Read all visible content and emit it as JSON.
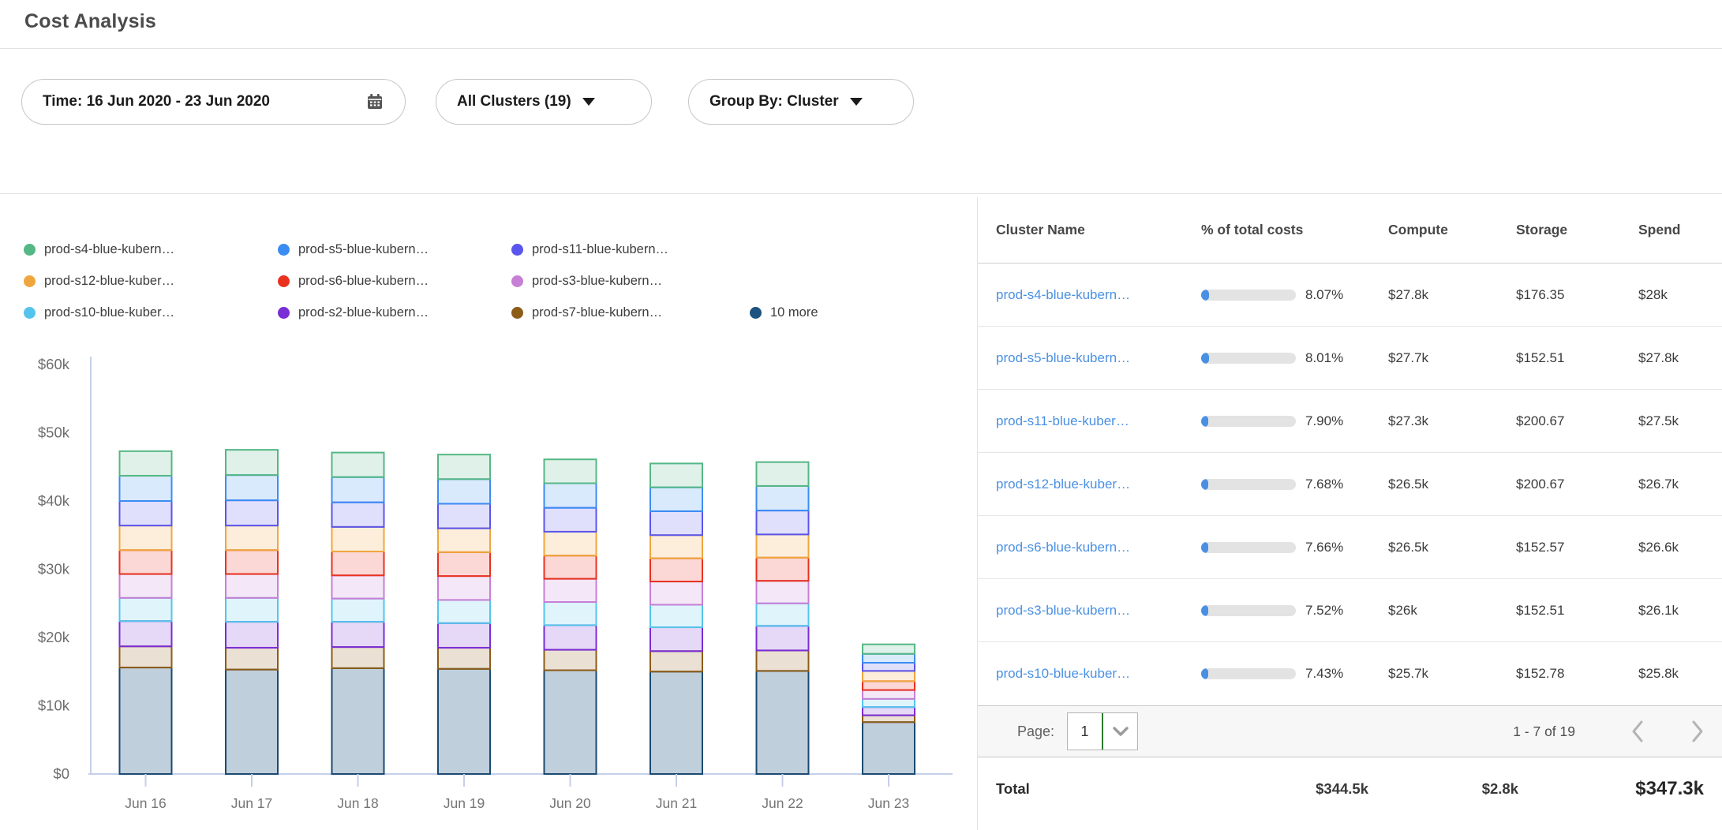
{
  "header": {
    "title": "Cost Analysis"
  },
  "filters": {
    "time": {
      "label": "Time: 16 Jun 2020 - 23 Jun 2020"
    },
    "clusters": {
      "label": "All Clusters (19)"
    },
    "group_by": {
      "label": "Group By: Cluster"
    }
  },
  "legend": {
    "rows": [
      [
        0,
        1,
        2
      ],
      [
        3,
        4,
        5
      ],
      [
        6,
        7,
        8,
        9
      ]
    ],
    "items": [
      {
        "label": "prod-s4-blue-kubern…",
        "color": "#55b785"
      },
      {
        "label": "prod-s5-blue-kubern…",
        "color": "#3c8df2"
      },
      {
        "label": "prod-s11-blue-kubern…",
        "color": "#5a55ee"
      },
      {
        "label": "prod-s12-blue-kuber…",
        "color": "#f0a63e"
      },
      {
        "label": "prod-s6-blue-kubern…",
        "color": "#e8321f"
      },
      {
        "label": "prod-s3-blue-kubern…",
        "color": "#c77fd6"
      },
      {
        "label": "prod-s10-blue-kuber…",
        "color": "#55c4ec"
      },
      {
        "label": "prod-s2-blue-kubern…",
        "color": "#7a2ed6"
      },
      {
        "label": "prod-s7-blue-kubern…",
        "color": "#8d5c17"
      },
      {
        "label": "10 more",
        "color": "#1d5380"
      }
    ]
  },
  "chart_data": {
    "type": "bar",
    "stacked": true,
    "categories": [
      "Jun 16",
      "Jun 17",
      "Jun 18",
      "Jun 19",
      "Jun 20",
      "Jun 21",
      "Jun 22",
      "Jun 23"
    ],
    "unit": "thousand USD",
    "ylim": [
      0,
      60
    ],
    "ytick_labels": [
      "$60k",
      "$50k",
      "$40k",
      "$30k",
      "$20k",
      "$10k",
      "$0"
    ],
    "ytick_values": [
      60,
      50,
      40,
      30,
      20,
      10,
      0
    ],
    "legend_position": "top",
    "grid": false,
    "note": "series listed bottom-to-top of stack; values estimated from bar heights, $k",
    "series": [
      {
        "name": "10 more",
        "color": "#1d5380",
        "stroke": "#1b4a70",
        "values": [
          15.6,
          15.3,
          15.5,
          15.4,
          15.2,
          15.0,
          15.1,
          7.6
        ]
      },
      {
        "name": "prod-s7-blue-kubern…",
        "color": "#8d5c17",
        "values": [
          3.1,
          3.2,
          3.1,
          3.1,
          3.0,
          3.0,
          3.0,
          1.0
        ]
      },
      {
        "name": "prod-s2-blue-kubern…",
        "color": "#7a2ed6",
        "values": [
          3.7,
          3.8,
          3.7,
          3.6,
          3.6,
          3.5,
          3.6,
          1.2
        ]
      },
      {
        "name": "prod-s10-blue-kuber…",
        "color": "#55c4ec",
        "values": [
          3.4,
          3.5,
          3.4,
          3.4,
          3.4,
          3.3,
          3.3,
          1.2
        ]
      },
      {
        "name": "prod-s3-blue-kubern…",
        "color": "#c77fd6",
        "values": [
          3.5,
          3.5,
          3.4,
          3.5,
          3.4,
          3.4,
          3.3,
          1.3
        ]
      },
      {
        "name": "prod-s6-blue-kubern…",
        "color": "#e8321f",
        "values": [
          3.5,
          3.5,
          3.5,
          3.5,
          3.4,
          3.4,
          3.4,
          1.3
        ]
      },
      {
        "name": "prod-s12-blue-kuber…",
        "color": "#f0a63e",
        "values": [
          3.6,
          3.6,
          3.6,
          3.5,
          3.5,
          3.4,
          3.4,
          1.5
        ]
      },
      {
        "name": "prod-s11-blue-kubern…",
        "color": "#5a55ee",
        "values": [
          3.6,
          3.7,
          3.6,
          3.6,
          3.5,
          3.5,
          3.5,
          1.2
        ]
      },
      {
        "name": "prod-s5-blue-kubern…",
        "color": "#3c8df2",
        "values": [
          3.7,
          3.7,
          3.7,
          3.6,
          3.6,
          3.5,
          3.6,
          1.3
        ]
      },
      {
        "name": "prod-s4-blue-kubern…",
        "color": "#55b785",
        "values": [
          3.6,
          3.7,
          3.6,
          3.6,
          3.5,
          3.5,
          3.5,
          1.4
        ]
      }
    ]
  },
  "table": {
    "headers": [
      "Cluster Name",
      "% of total costs",
      "Compute",
      "Storage",
      "Spend"
    ],
    "progress_color": "#4a90e2",
    "rows": [
      {
        "name": "prod-s4-blue-kubern…",
        "pct": "8.07%",
        "pct_value": 8.07,
        "compute": "$27.8k",
        "storage": "$176.35",
        "spend": "$28k"
      },
      {
        "name": "prod-s5-blue-kubern…",
        "pct": "8.01%",
        "pct_value": 8.01,
        "compute": "$27.7k",
        "storage": "$152.51",
        "spend": "$27.8k"
      },
      {
        "name": "prod-s11-blue-kuber…",
        "pct": "7.90%",
        "pct_value": 7.9,
        "compute": "$27.3k",
        "storage": "$200.67",
        "spend": "$27.5k"
      },
      {
        "name": "prod-s12-blue-kuber…",
        "pct": "7.68%",
        "pct_value": 7.68,
        "compute": "$26.5k",
        "storage": "$200.67",
        "spend": "$26.7k"
      },
      {
        "name": "prod-s6-blue-kubern…",
        "pct": "7.66%",
        "pct_value": 7.66,
        "compute": "$26.5k",
        "storage": "$152.57",
        "spend": "$26.6k"
      },
      {
        "name": "prod-s3-blue-kubern…",
        "pct": "7.52%",
        "pct_value": 7.52,
        "compute": "$26k",
        "storage": "$152.51",
        "spend": "$26.1k"
      },
      {
        "name": "prod-s10-blue-kuber…",
        "pct": "7.43%",
        "pct_value": 7.43,
        "compute": "$25.7k",
        "storage": "$152.78",
        "spend": "$25.8k"
      }
    ],
    "pagination": {
      "page_label": "Page:",
      "page": "1",
      "range": "1 - 7 of 19"
    },
    "total": {
      "label": "Total",
      "compute": "$344.5k",
      "storage": "$2.8k",
      "spend": "$347.3k"
    }
  }
}
